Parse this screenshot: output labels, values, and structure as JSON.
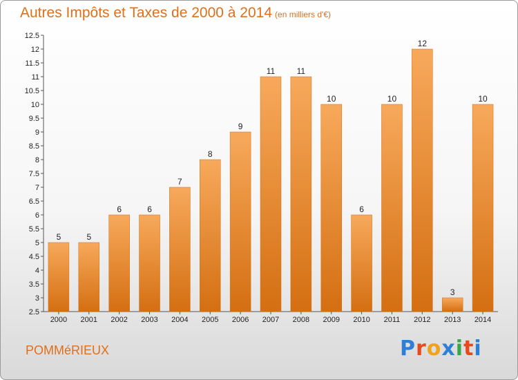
{
  "header": {
    "title": "Autres Impôts et Taxes de 2000 à 2014",
    "subtitle": "(en milliers d'€)"
  },
  "footer": {
    "commune": "POMMéRIEUX",
    "logo_letters": [
      "P",
      "r",
      "o",
      "x",
      "i",
      "t",
      "i"
    ]
  },
  "colors": {
    "bar": "#f08a30",
    "bar_light": "#f7a95b",
    "bar_dark": "#d46f12",
    "title": "#e06f1a",
    "grid": "#cccccc",
    "logo": [
      "#2e7fd6",
      "#e64b1f",
      "#f0a21a",
      "#2e7fd6",
      "#3aa64a",
      "#e64b1f",
      "#2e7fd6"
    ]
  },
  "chart_data": {
    "type": "bar",
    "title": "Autres Impôts et Taxes de 2000 à 2014",
    "subtitle": "(en milliers d'€)",
    "xlabel": "",
    "ylabel": "",
    "categories": [
      "2000",
      "2001",
      "2002",
      "2003",
      "2004",
      "2005",
      "2006",
      "2007",
      "2008",
      "2009",
      "2010",
      "2011",
      "2012",
      "2013",
      "2014"
    ],
    "values": [
      5,
      5,
      6,
      6,
      7,
      8,
      9,
      11,
      11,
      10,
      6,
      10,
      12,
      3,
      10
    ],
    "ylim": [
      2.5,
      12.5
    ],
    "yticks": [
      "2.5",
      "3",
      "3.5",
      "4",
      "4.5",
      "5",
      "5.5",
      "6",
      "6.5",
      "7",
      "7.5",
      "8",
      "8.5",
      "9",
      "9.5",
      "10",
      "10.5",
      "11",
      "11.5",
      "12",
      "12.5"
    ],
    "grid": false,
    "legend": "none"
  }
}
